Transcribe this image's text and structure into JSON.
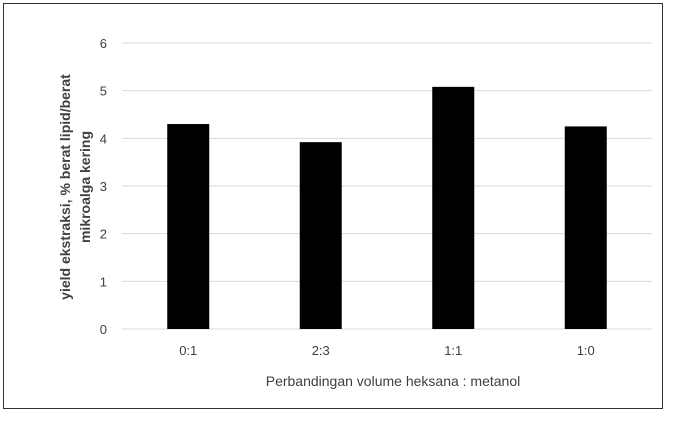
{
  "chart_data": {
    "type": "bar",
    "categories": [
      "0:1",
      "2:3",
      "1:1",
      "1:0"
    ],
    "values": [
      4.3,
      3.92,
      5.08,
      4.25
    ],
    "title": "",
    "xlabel": "Perbandingan volume heksana : metanol",
    "ylabel_line1": "yield ekstraksi, % berat lipid/berat",
    "ylabel_line2": "mikroalga kering",
    "ylim": [
      0,
      6
    ],
    "yticks": [
      "0",
      "1",
      "2",
      "3",
      "4",
      "5",
      "6"
    ],
    "grid": true,
    "legend": "none",
    "bar_color": "#000000",
    "grid_color": "#d9d9d9"
  }
}
